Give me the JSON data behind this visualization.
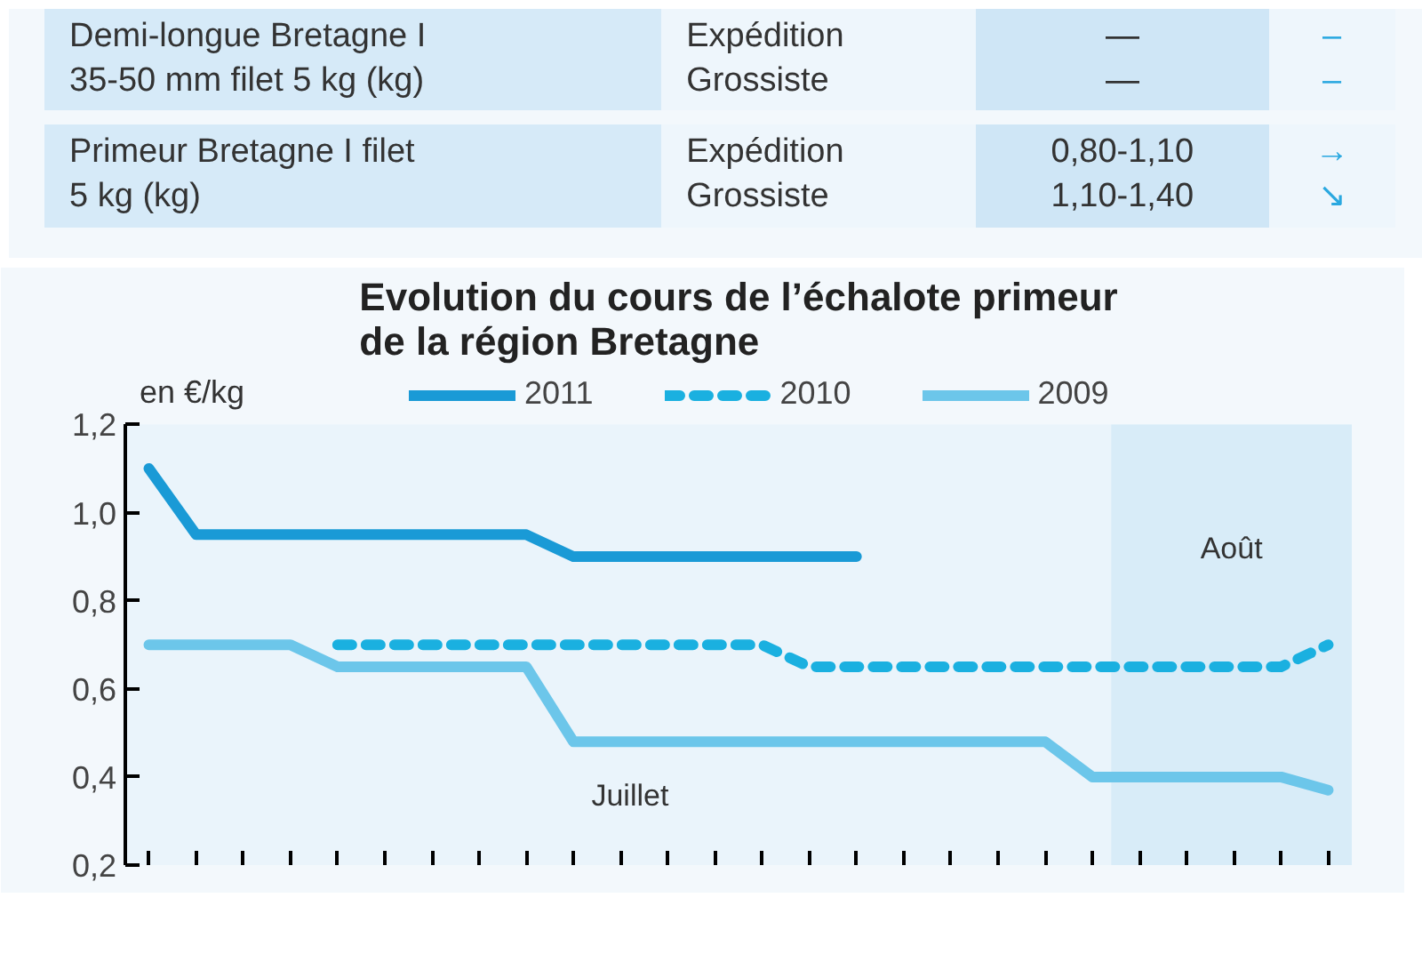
{
  "chart_data": {
    "type": "line",
    "title": "Evolution du cours de l’échalote primeur\nde la région Bretagne",
    "ylabel": "en €/kg",
    "categories": [
      null,
      null,
      null,
      null,
      null,
      null,
      null,
      null,
      null,
      null,
      null,
      null,
      null,
      null,
      null,
      null,
      null,
      null,
      null,
      null,
      null,
      null,
      null,
      null,
      null,
      null
    ],
    "series": [
      {
        "name": "2011",
        "color": "#1a9ad6",
        "line_style": "solid",
        "values": [
          1.1,
          0.95,
          0.95,
          0.95,
          0.95,
          0.95,
          0.95,
          0.95,
          0.95,
          0.9,
          0.9,
          0.9,
          0.9,
          0.9,
          0.9,
          0.9,
          null,
          null,
          null,
          null,
          null,
          null,
          null,
          null,
          null,
          null
        ]
      },
      {
        "name": "2010",
        "color": "#1ab0e0",
        "line_style": "dashed",
        "values": [
          null,
          null,
          null,
          null,
          0.7,
          0.7,
          0.7,
          0.7,
          0.7,
          0.7,
          0.7,
          0.7,
          0.7,
          0.7,
          0.65,
          0.65,
          0.65,
          0.65,
          0.65,
          0.65,
          0.65,
          0.65,
          0.65,
          0.65,
          0.65,
          0.7
        ]
      },
      {
        "name": "2009",
        "color": "#6cc6ea",
        "line_style": "solid",
        "values": [
          0.7,
          0.7,
          0.7,
          0.7,
          0.65,
          0.65,
          0.65,
          0.65,
          0.65,
          0.48,
          0.48,
          0.48,
          0.48,
          0.48,
          0.48,
          0.48,
          0.48,
          0.48,
          0.48,
          0.48,
          0.4,
          0.4,
          0.4,
          0.4,
          0.4,
          0.37
        ]
      }
    ],
    "ylim": [
      0.2,
      1.2
    ],
    "yticks": [
      {
        "value": 0.2,
        "label": "0,2"
      },
      {
        "value": 0.4,
        "label": "0,4"
      },
      {
        "value": 0.6,
        "label": "0,6"
      },
      {
        "value": 0.8,
        "label": "0,8"
      },
      {
        "value": 1.0,
        "label": "1,0"
      },
      {
        "value": 1.2,
        "label": "1,2"
      }
    ],
    "legend": "top",
    "grid": false,
    "marker": "none",
    "annotations": [
      "Demi-longue Bretagne I\n35-50 mm filet 5 kg (kg)",
      "Expédition\nGrossiste",
      "—\n—",
      "–\n–",
      "Primeur Bretagne I filet\n5 kg (kg)",
      "Expédition\nGrossiste",
      "0,80-1,10\n1,10-1,40",
      "→\n↘",
      "Juillet",
      "Août"
    ]
  }
}
